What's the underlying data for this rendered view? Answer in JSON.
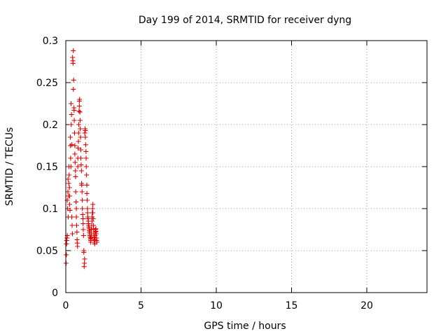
{
  "chart_data": {
    "type": "scatter",
    "title": "Day 199 of 2014, SRMTID for receiver dyng",
    "xlabel": "GPS time / hours",
    "ylabel": "SRMTID / TECUs",
    "xlim": [
      0,
      24
    ],
    "ylim": [
      0,
      0.3
    ],
    "x_ticks": [
      "0",
      "5",
      "10",
      "15",
      "20"
    ],
    "y_ticks": [
      "0",
      "0.05",
      "0.1",
      "0.15",
      "0.2",
      "0.25",
      "0.3"
    ],
    "grid": true,
    "marker": "+",
    "color": "#e00000",
    "series": [
      {
        "points": [
          [
            0.02,
            0.035
          ],
          [
            0.04,
            0.045
          ],
          [
            0.05,
            0.058
          ],
          [
            0.06,
            0.062
          ],
          [
            0.08,
            0.065
          ],
          [
            0.1,
            0.068
          ],
          [
            0.1,
            0.11
          ],
          [
            0.12,
            0.1
          ],
          [
            0.14,
            0.12
          ],
          [
            0.15,
            0.135
          ],
          [
            0.16,
            0.09
          ],
          [
            0.18,
            0.115
          ],
          [
            0.2,
            0.13
          ],
          [
            0.2,
            0.15
          ],
          [
            0.22,
            0.14
          ],
          [
            0.24,
            0.125
          ],
          [
            0.25,
            0.105
          ],
          [
            0.26,
            0.115
          ],
          [
            0.28,
            0.098
          ],
          [
            0.3,
            0.175
          ],
          [
            0.3,
            0.185
          ],
          [
            0.32,
            0.16
          ],
          [
            0.34,
            0.15
          ],
          [
            0.35,
            0.225
          ],
          [
            0.36,
            0.2
          ],
          [
            0.38,
            0.212
          ],
          [
            0.4,
            0.176
          ],
          [
            0.4,
            0.09
          ],
          [
            0.42,
            0.08
          ],
          [
            0.44,
            0.07
          ],
          [
            0.45,
            0.28
          ],
          [
            0.47,
            0.276
          ],
          [
            0.48,
            0.273
          ],
          [
            0.5,
            0.288
          ],
          [
            0.5,
            0.242
          ],
          [
            0.52,
            0.253
          ],
          [
            0.54,
            0.22
          ],
          [
            0.55,
            0.217
          ],
          [
            0.56,
            0.205
          ],
          [
            0.58,
            0.19
          ],
          [
            0.6,
            0.175
          ],
          [
            0.6,
            0.165
          ],
          [
            0.62,
            0.155
          ],
          [
            0.64,
            0.145
          ],
          [
            0.65,
            0.138
          ],
          [
            0.66,
            0.12
          ],
          [
            0.68,
            0.108
          ],
          [
            0.7,
            0.1
          ],
          [
            0.7,
            0.09
          ],
          [
            0.72,
            0.08
          ],
          [
            0.74,
            0.072
          ],
          [
            0.75,
            0.063
          ],
          [
            0.76,
            0.059
          ],
          [
            0.78,
            0.055
          ],
          [
            0.8,
            0.15
          ],
          [
            0.8,
            0.16
          ],
          [
            0.82,
            0.172
          ],
          [
            0.84,
            0.18
          ],
          [
            0.85,
            0.19
          ],
          [
            0.86,
            0.2
          ],
          [
            0.88,
            0.216
          ],
          [
            0.9,
            0.222
          ],
          [
            0.9,
            0.228
          ],
          [
            0.92,
            0.23
          ],
          [
            0.94,
            0.215
          ],
          [
            0.95,
            0.205
          ],
          [
            0.96,
            0.195
          ],
          [
            0.98,
            0.185
          ],
          [
            1.0,
            0.17
          ],
          [
            1.0,
            0.16
          ],
          [
            1.02,
            0.152
          ],
          [
            1.04,
            0.145
          ],
          [
            1.05,
            0.13
          ],
          [
            1.06,
            0.128
          ],
          [
            1.08,
            0.12
          ],
          [
            1.1,
            0.11
          ],
          [
            1.1,
            0.1
          ],
          [
            1.12,
            0.093
          ],
          [
            1.14,
            0.088
          ],
          [
            1.15,
            0.082
          ],
          [
            1.16,
            0.075
          ],
          [
            1.18,
            0.068
          ],
          [
            1.2,
            0.05
          ],
          [
            1.2,
            0.048
          ],
          [
            1.22,
            0.031
          ],
          [
            1.24,
            0.035
          ],
          [
            1.25,
            0.04
          ],
          [
            1.26,
            0.19
          ],
          [
            1.28,
            0.195
          ],
          [
            1.3,
            0.193
          ],
          [
            1.3,
            0.185
          ],
          [
            1.32,
            0.176
          ],
          [
            1.34,
            0.168
          ],
          [
            1.35,
            0.16
          ],
          [
            1.36,
            0.15
          ],
          [
            1.38,
            0.14
          ],
          [
            1.4,
            0.128
          ],
          [
            1.4,
            0.118
          ],
          [
            1.42,
            0.11
          ],
          [
            1.44,
            0.1
          ],
          [
            1.45,
            0.095
          ],
          [
            1.46,
            0.09
          ],
          [
            1.48,
            0.088
          ],
          [
            1.5,
            0.085
          ],
          [
            1.5,
            0.082
          ],
          [
            1.52,
            0.08
          ],
          [
            1.54,
            0.078
          ],
          [
            1.55,
            0.076
          ],
          [
            1.56,
            0.074
          ],
          [
            1.58,
            0.072
          ],
          [
            1.6,
            0.07
          ],
          [
            1.6,
            0.068
          ],
          [
            1.62,
            0.066
          ],
          [
            1.64,
            0.064
          ],
          [
            1.65,
            0.062
          ],
          [
            1.66,
            0.06
          ],
          [
            1.68,
            0.065
          ],
          [
            1.7,
            0.07
          ],
          [
            1.7,
            0.075
          ],
          [
            1.72,
            0.08
          ],
          [
            1.74,
            0.085
          ],
          [
            1.75,
            0.09
          ],
          [
            1.76,
            0.095
          ],
          [
            1.78,
            0.1
          ],
          [
            1.8,
            0.105
          ],
          [
            1.8,
            0.095
          ],
          [
            1.82,
            0.088
          ],
          [
            1.84,
            0.08
          ],
          [
            1.85,
            0.076
          ],
          [
            1.86,
            0.07
          ],
          [
            1.88,
            0.066
          ],
          [
            1.9,
            0.062
          ],
          [
            1.9,
            0.06
          ],
          [
            1.92,
            0.058
          ],
          [
            1.94,
            0.063
          ],
          [
            1.95,
            0.068
          ],
          [
            1.96,
            0.072
          ],
          [
            1.98,
            0.075
          ],
          [
            2.0,
            0.076
          ],
          [
            2.0,
            0.073
          ],
          [
            2.02,
            0.07
          ],
          [
            2.04,
            0.065
          ],
          [
            2.05,
            0.062
          ],
          [
            2.06,
            0.06
          ]
        ]
      }
    ]
  }
}
